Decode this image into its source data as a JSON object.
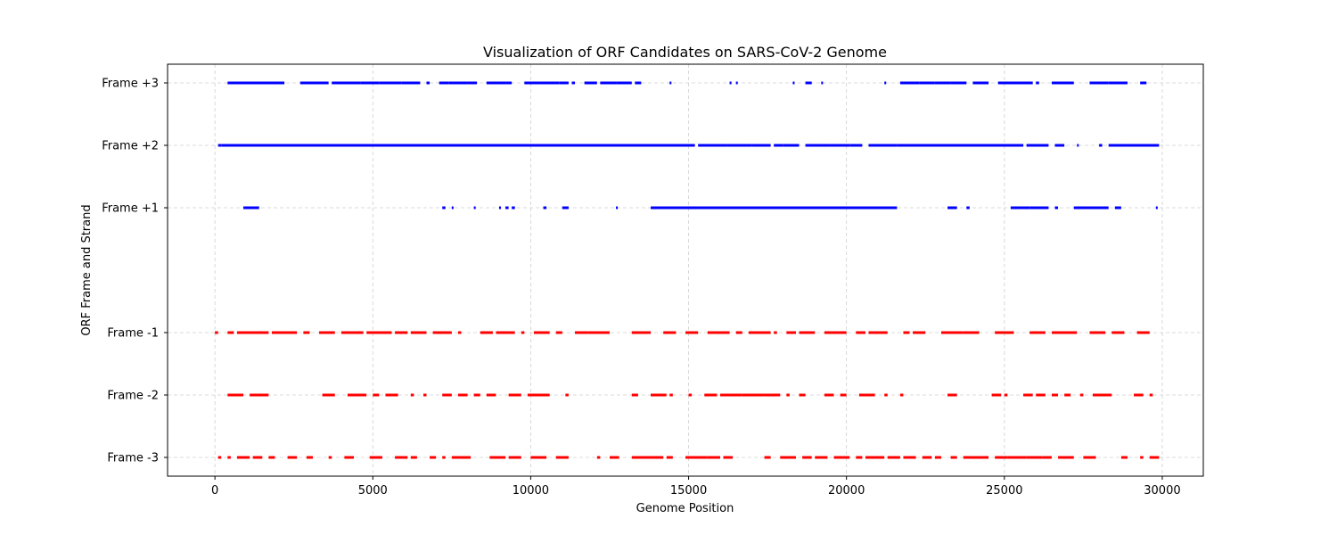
{
  "chart_data": {
    "type": "scatter",
    "title": "Visualization of ORF Candidates on SARS-CoV-2 Genome",
    "xlabel": "Genome Position",
    "ylabel": "ORF Frame and Strand",
    "xlim": [
      -1500,
      31300
    ],
    "ylim": [
      -3.3,
      3.3
    ],
    "xticks": [
      0,
      5000,
      10000,
      15000,
      20000,
      25000,
      30000
    ],
    "yticks": [
      {
        "value": 3,
        "label": "Frame +3"
      },
      {
        "value": 2,
        "label": "Frame +2"
      },
      {
        "value": 1,
        "label": "Frame +1"
      },
      {
        "value": -1,
        "label": "Frame -1"
      },
      {
        "value": -2,
        "label": "Frame -2"
      },
      {
        "value": -3,
        "label": "Frame -3"
      }
    ],
    "grid": true,
    "colors": {
      "forward": "#0000ff",
      "reverse": "#ff0000"
    },
    "series": [
      {
        "frame": 3,
        "color": "#0000ff",
        "segments": [
          [
            400,
            2200
          ],
          [
            2700,
            3600
          ],
          [
            3700,
            4600
          ],
          [
            4600,
            5200
          ],
          [
            5200,
            5900
          ],
          [
            5900,
            6500
          ],
          [
            6700,
            6800
          ],
          [
            7100,
            7400
          ],
          [
            7400,
            8000
          ],
          [
            8000,
            8300
          ],
          [
            8600,
            9200
          ],
          [
            9200,
            9400
          ],
          [
            9800,
            10300
          ],
          [
            10300,
            10900
          ],
          [
            10900,
            11200
          ],
          [
            11300,
            11400
          ],
          [
            11700,
            12100
          ],
          [
            12200,
            12700
          ],
          [
            12700,
            13200
          ],
          [
            13300,
            13500
          ],
          [
            14400,
            14450
          ],
          [
            16300,
            16350
          ],
          [
            16500,
            16550
          ],
          [
            18300,
            18350
          ],
          [
            18700,
            18900
          ],
          [
            19200,
            19250
          ],
          [
            21200,
            21250
          ],
          [
            21700,
            22300
          ],
          [
            22300,
            22800
          ],
          [
            22800,
            23300
          ],
          [
            23300,
            23800
          ],
          [
            24000,
            24500
          ],
          [
            24800,
            25400
          ],
          [
            25400,
            25900
          ],
          [
            26000,
            26100
          ],
          [
            26500,
            27200
          ],
          [
            27700,
            28300
          ],
          [
            28300,
            28900
          ],
          [
            29300,
            29500
          ]
        ]
      },
      {
        "frame": 2,
        "color": "#0000ff",
        "segments": [
          [
            100,
            200
          ],
          [
            200,
            13700
          ],
          [
            13700,
            15200
          ],
          [
            15300,
            16200
          ],
          [
            16200,
            17000
          ],
          [
            17000,
            17600
          ],
          [
            17700,
            18000
          ],
          [
            18000,
            18500
          ],
          [
            18700,
            19500
          ],
          [
            19500,
            20100
          ],
          [
            20100,
            20500
          ],
          [
            20700,
            21600
          ],
          [
            21600,
            25600
          ],
          [
            25700,
            26400
          ],
          [
            26600,
            26900
          ],
          [
            27300,
            27350
          ],
          [
            28000,
            28100
          ],
          [
            28300,
            28900
          ],
          [
            28900,
            29900
          ]
        ]
      },
      {
        "frame": 1,
        "color": "#0000ff",
        "segments": [
          [
            900,
            1400
          ],
          [
            7200,
            7300
          ],
          [
            7500,
            7550
          ],
          [
            8200,
            8250
          ],
          [
            9000,
            9050
          ],
          [
            9200,
            9300
          ],
          [
            9400,
            9500
          ],
          [
            10400,
            10500
          ],
          [
            11000,
            11200
          ],
          [
            12700,
            12750
          ],
          [
            13800,
            21600
          ],
          [
            23200,
            23500
          ],
          [
            23800,
            23900
          ],
          [
            25200,
            25800
          ],
          [
            25800,
            26400
          ],
          [
            26600,
            26700
          ],
          [
            27200,
            27700
          ],
          [
            27700,
            28300
          ],
          [
            28500,
            28700
          ],
          [
            29800,
            29850
          ]
        ]
      },
      {
        "frame": -1,
        "color": "#ff0000",
        "segments": [
          [
            0,
            100
          ],
          [
            400,
            600
          ],
          [
            700,
            1700
          ],
          [
            1800,
            2600
          ],
          [
            2800,
            3000
          ],
          [
            3300,
            3800
          ],
          [
            4000,
            4700
          ],
          [
            4800,
            5600
          ],
          [
            5700,
            6100
          ],
          [
            6200,
            6700
          ],
          [
            6900,
            7500
          ],
          [
            7700,
            7800
          ],
          [
            8400,
            8800
          ],
          [
            8900,
            9500
          ],
          [
            9700,
            9800
          ],
          [
            10100,
            10600
          ],
          [
            10800,
            11000
          ],
          [
            11400,
            11800
          ],
          [
            11800,
            12500
          ],
          [
            13200,
            13800
          ],
          [
            14200,
            14600
          ],
          [
            14900,
            15300
          ],
          [
            15600,
            16300
          ],
          [
            16500,
            16700
          ],
          [
            16900,
            17600
          ],
          [
            17700,
            17800
          ],
          [
            18100,
            18400
          ],
          [
            18500,
            19000
          ],
          [
            19300,
            20000
          ],
          [
            20300,
            20600
          ],
          [
            20700,
            21300
          ],
          [
            21800,
            22000
          ],
          [
            22100,
            22500
          ],
          [
            23000,
            23700
          ],
          [
            23700,
            24200
          ],
          [
            24700,
            25300
          ],
          [
            25800,
            26300
          ],
          [
            26500,
            27300
          ],
          [
            27700,
            28200
          ],
          [
            28400,
            28800
          ],
          [
            29200,
            29600
          ]
        ]
      },
      {
        "frame": -2,
        "color": "#ff0000",
        "segments": [
          [
            400,
            900
          ],
          [
            1100,
            1700
          ],
          [
            3400,
            3800
          ],
          [
            4200,
            4800
          ],
          [
            5000,
            5200
          ],
          [
            5400,
            5800
          ],
          [
            6200,
            6300
          ],
          [
            6600,
            6700
          ],
          [
            7200,
            7500
          ],
          [
            7700,
            8000
          ],
          [
            8200,
            8400
          ],
          [
            8600,
            8900
          ],
          [
            9300,
            9700
          ],
          [
            9900,
            10600
          ],
          [
            11100,
            11200
          ],
          [
            13200,
            13400
          ],
          [
            13800,
            14300
          ],
          [
            14400,
            14500
          ],
          [
            15000,
            15100
          ],
          [
            15500,
            15900
          ],
          [
            16000,
            16700
          ],
          [
            16700,
            17400
          ],
          [
            17400,
            17900
          ],
          [
            18100,
            18200
          ],
          [
            18500,
            18700
          ],
          [
            19300,
            19600
          ],
          [
            19800,
            20000
          ],
          [
            20400,
            20900
          ],
          [
            21200,
            21300
          ],
          [
            21700,
            21800
          ],
          [
            23200,
            23500
          ],
          [
            24600,
            24900
          ],
          [
            25000,
            25100
          ],
          [
            25600,
            25900
          ],
          [
            26000,
            26300
          ],
          [
            26500,
            26700
          ],
          [
            26900,
            27100
          ],
          [
            27400,
            27500
          ],
          [
            27800,
            28400
          ],
          [
            29100,
            29400
          ],
          [
            29600,
            29700
          ]
        ]
      },
      {
        "frame": -3,
        "color": "#ff0000",
        "segments": [
          [
            100,
            200
          ],
          [
            400,
            500
          ],
          [
            700,
            1100
          ],
          [
            1200,
            1500
          ],
          [
            1700,
            1900
          ],
          [
            2300,
            2600
          ],
          [
            2900,
            3100
          ],
          [
            3600,
            3700
          ],
          [
            4100,
            4400
          ],
          [
            4900,
            5300
          ],
          [
            5700,
            6100
          ],
          [
            6200,
            6400
          ],
          [
            6800,
            7000
          ],
          [
            7200,
            7300
          ],
          [
            7500,
            8100
          ],
          [
            8700,
            9200
          ],
          [
            9300,
            9700
          ],
          [
            10000,
            10500
          ],
          [
            10800,
            11200
          ],
          [
            12100,
            12200
          ],
          [
            12500,
            12800
          ],
          [
            13200,
            13800
          ],
          [
            13800,
            14200
          ],
          [
            14300,
            14500
          ],
          [
            14900,
            15600
          ],
          [
            15600,
            16000
          ],
          [
            16100,
            16400
          ],
          [
            17400,
            17600
          ],
          [
            17900,
            18400
          ],
          [
            18600,
            18900
          ],
          [
            19000,
            19400
          ],
          [
            19600,
            20100
          ],
          [
            20300,
            20500
          ],
          [
            20600,
            21200
          ],
          [
            21300,
            21700
          ],
          [
            21800,
            22200
          ],
          [
            22400,
            22700
          ],
          [
            22800,
            23000
          ],
          [
            23300,
            23500
          ],
          [
            23700,
            24500
          ],
          [
            24700,
            25100
          ],
          [
            25100,
            25700
          ],
          [
            25700,
            26200
          ],
          [
            26200,
            26500
          ],
          [
            26700,
            27200
          ],
          [
            27500,
            27900
          ],
          [
            28700,
            28900
          ],
          [
            29300,
            29400
          ],
          [
            29600,
            29900
          ]
        ]
      }
    ]
  }
}
